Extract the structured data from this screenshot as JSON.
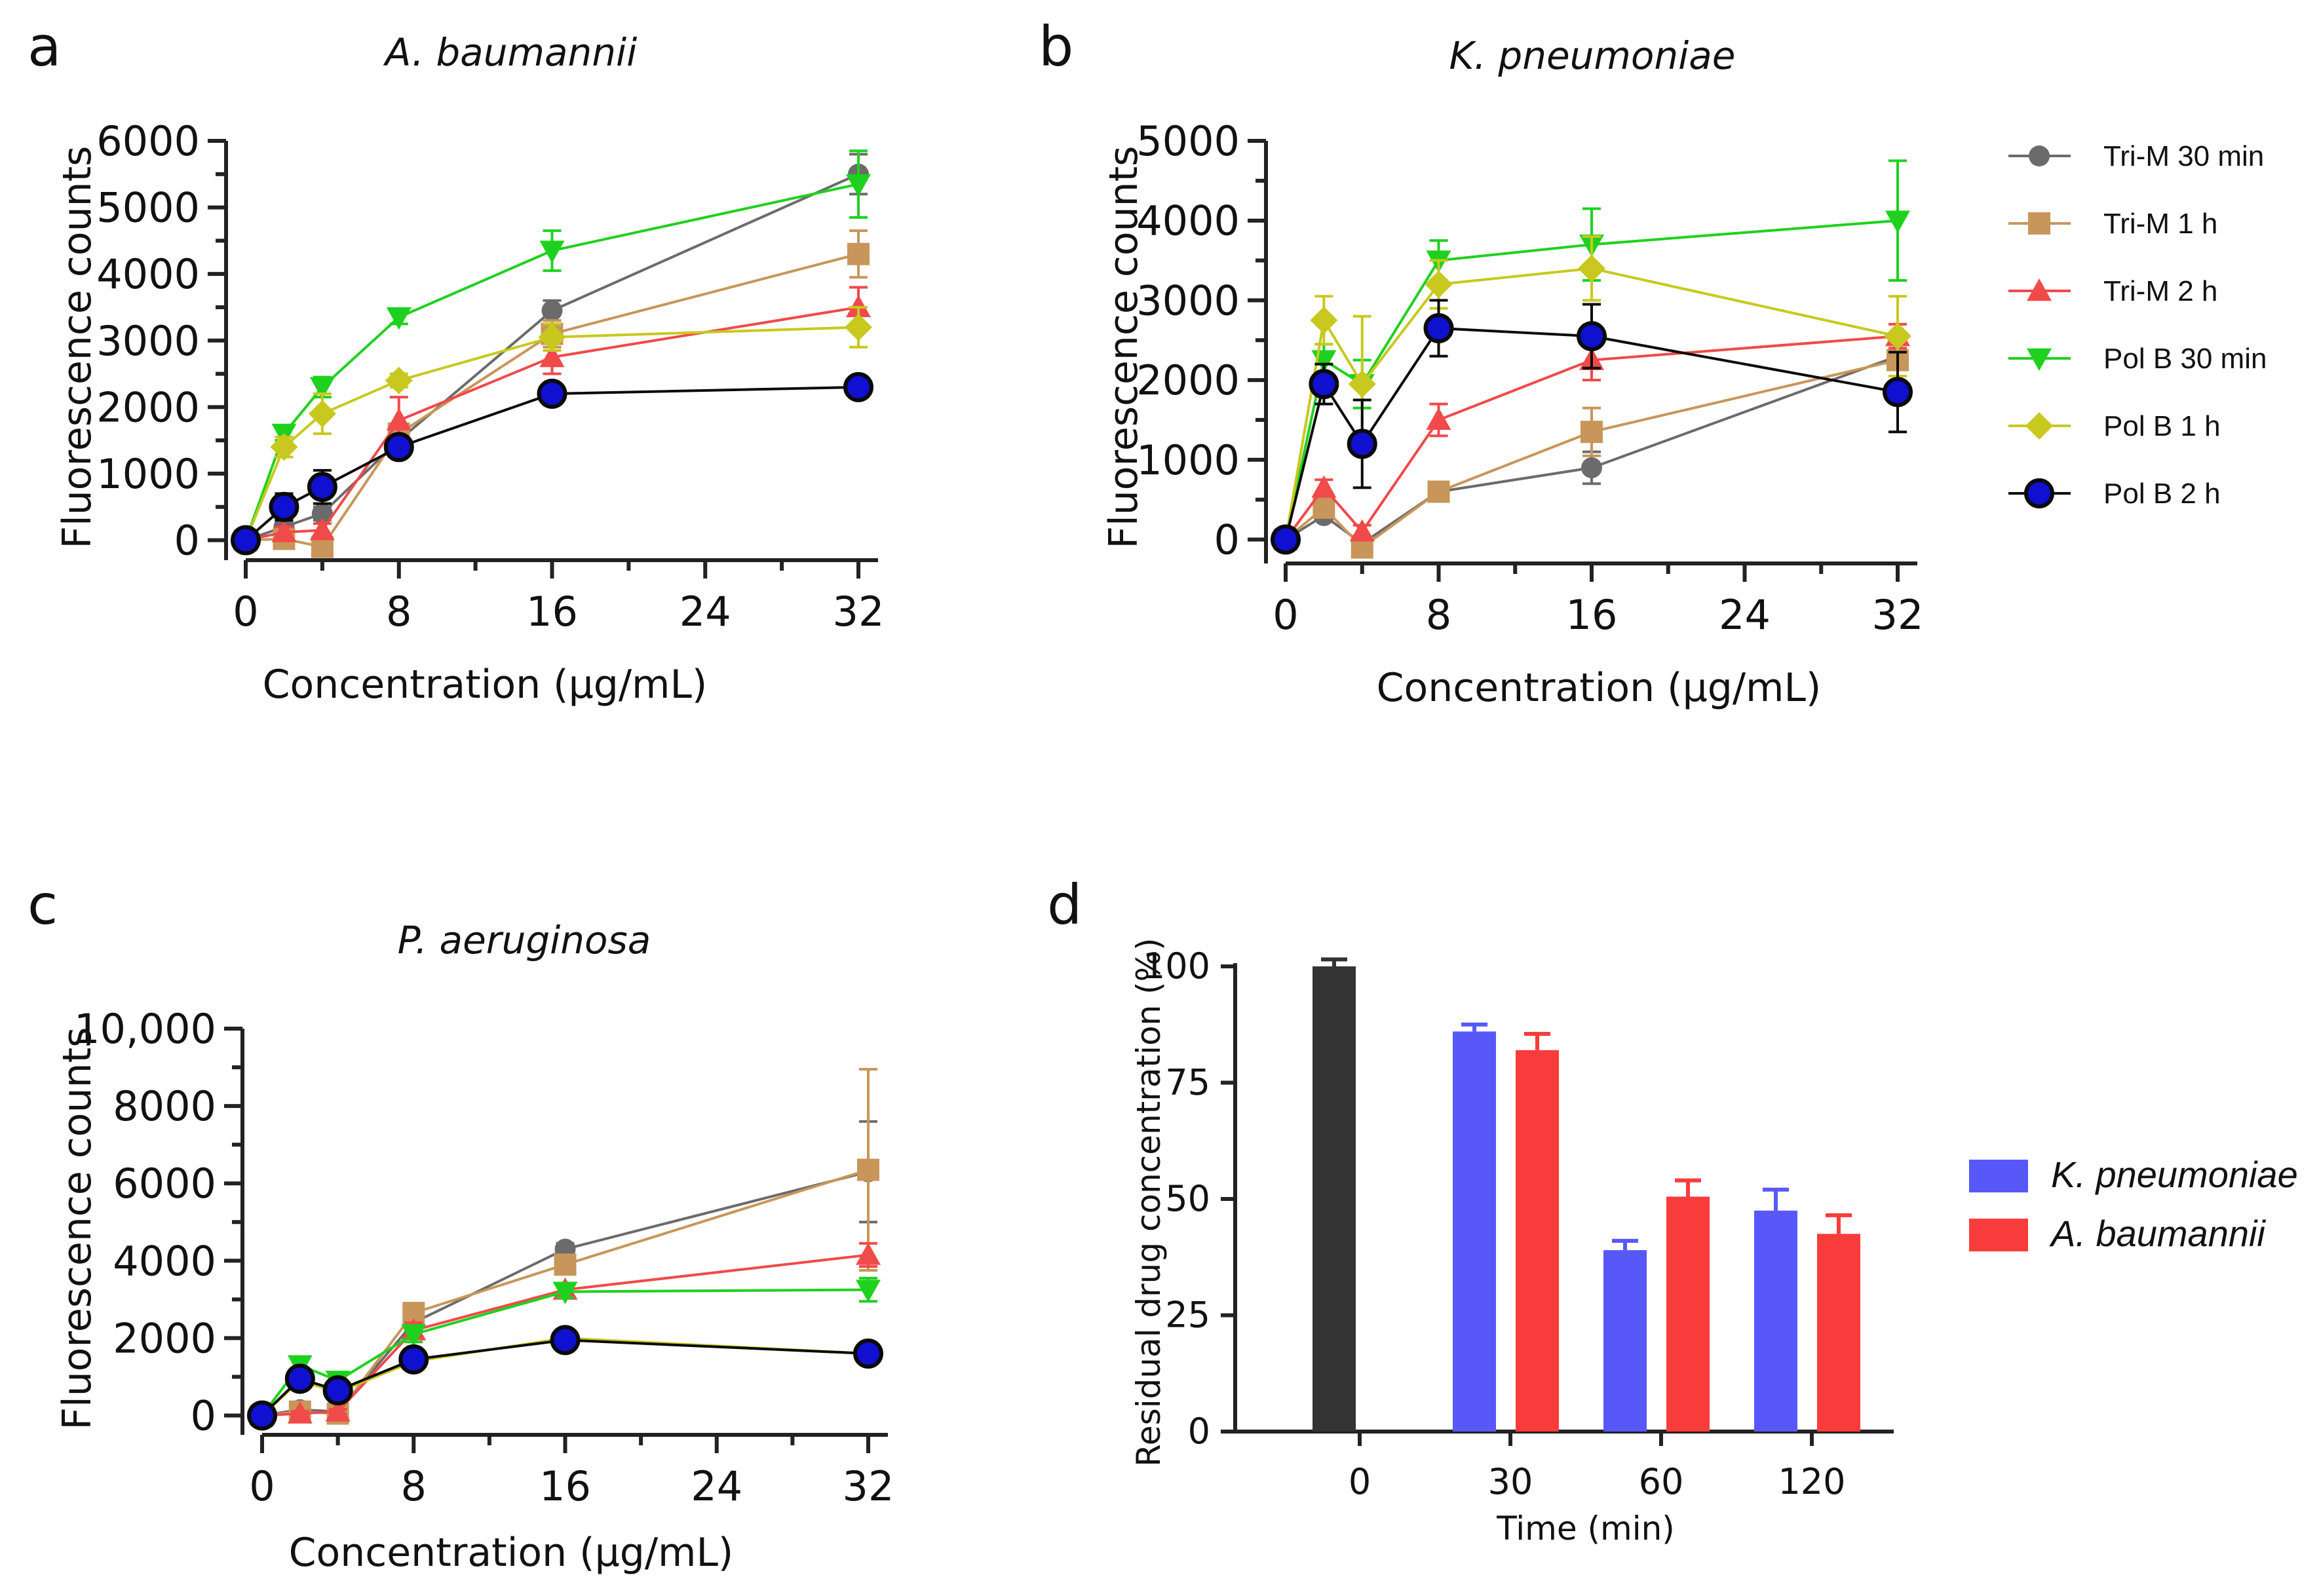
{
  "colors": {
    "trim30": "#6b6b6b",
    "trim1h": "#c8965a",
    "trim2h": "#f04a4a",
    "polb30": "#1fd11f",
    "polb1h": "#c8c81e",
    "polb2h": "#0a0a0a",
    "polb2h_fill": "#1010d0",
    "kpn": "#5858f8",
    "aba": "#f83c3c",
    "zero_bar": "#333333"
  },
  "legend": [
    {
      "label": "Tri-M 30 min",
      "color": "trim30",
      "marker": "circle"
    },
    {
      "label": "Tri-M 1 h",
      "color": "trim1h",
      "marker": "square"
    },
    {
      "label": "Tri-M 2 h",
      "color": "trim2h",
      "marker": "triangle-up"
    },
    {
      "label": "Pol B 30 min",
      "color": "polb30",
      "marker": "triangle-down"
    },
    {
      "label": "Pol B 1 h",
      "color": "polb1h",
      "marker": "diamond"
    },
    {
      "label": "Pol B 2 h",
      "color": "polb2h",
      "marker": "big-circle"
    }
  ],
  "chart_data": [
    {
      "panel": "a",
      "type": "line",
      "title": "A. baumannii",
      "xlabel": "Concentration (μg/mL)",
      "ylabel": "Fluorescence counts",
      "x": [
        0,
        2,
        4,
        8,
        16,
        32
      ],
      "xticks": [
        0,
        8,
        16,
        24,
        32
      ],
      "xtick_labels": [
        "0",
        "8",
        "16",
        "24",
        "32"
      ],
      "yticks": [
        0,
        1000,
        2000,
        3000,
        4000,
        5000,
        6000
      ],
      "ytick_labels": [
        "0",
        "1000",
        "2000",
        "3000",
        "4000",
        "5000",
        "6000"
      ],
      "xlim": [
        0,
        32
      ],
      "ylim": [
        -300,
        6000
      ],
      "series": [
        {
          "name": "Tri-M 30 min",
          "values": [
            0,
            200,
            400,
            1500,
            3450,
            5500
          ],
          "err": [
            0,
            80,
            100,
            150,
            150,
            300
          ]
        },
        {
          "name": "Tri-M 1 h",
          "values": [
            0,
            20,
            -100,
            1600,
            3100,
            4300
          ],
          "err": [
            0,
            60,
            80,
            150,
            200,
            350
          ]
        },
        {
          "name": "Tri-M 2 h",
          "values": [
            0,
            120,
            150,
            1800,
            2750,
            3500
          ],
          "err": [
            0,
            80,
            100,
            350,
            250,
            300
          ]
        },
        {
          "name": "Pol B 30 min",
          "values": [
            0,
            1600,
            2300,
            3350,
            4350,
            5350
          ],
          "err": [
            0,
            100,
            150,
            100,
            300,
            500
          ]
        },
        {
          "name": "Pol B 1 h",
          "values": [
            0,
            1400,
            1900,
            2400,
            3050,
            3200
          ],
          "err": [
            0,
            150,
            300,
            100,
            200,
            300
          ]
        },
        {
          "name": "Pol B 2 h",
          "values": [
            0,
            500,
            800,
            1400,
            2200,
            2300
          ],
          "err": [
            0,
            200,
            250,
            100,
            150,
            100
          ]
        }
      ]
    },
    {
      "panel": "b",
      "type": "line",
      "title": "K. pneumoniae",
      "xlabel": "Concentration (μg/mL)",
      "ylabel": "Fluorescence counts",
      "x": [
        0,
        2,
        4,
        8,
        16,
        32
      ],
      "xticks": [
        0,
        8,
        16,
        24,
        32
      ],
      "xtick_labels": [
        "0",
        "8",
        "16",
        "24",
        "32"
      ],
      "yticks": [
        0,
        1000,
        2000,
        3000,
        4000,
        5000
      ],
      "ytick_labels": [
        "0",
        "1000",
        "2000",
        "3000",
        "4000",
        "5000"
      ],
      "xlim": [
        0,
        32
      ],
      "ylim": [
        -300,
        5000
      ],
      "series": [
        {
          "name": "Tri-M 30 min",
          "values": [
            0,
            300,
            -50,
            600,
            900,
            2300
          ],
          "err": [
            0,
            60,
            60,
            80,
            200,
            150
          ]
        },
        {
          "name": "Tri-M 1 h",
          "values": [
            0,
            400,
            -100,
            600,
            1350,
            2250
          ],
          "err": [
            0,
            80,
            60,
            100,
            300,
            200
          ]
        },
        {
          "name": "Tri-M 2 h",
          "values": [
            0,
            650,
            100,
            1500,
            2250,
            2550
          ],
          "err": [
            0,
            100,
            80,
            200,
            250,
            150
          ]
        },
        {
          "name": "Pol B 30 min",
          "values": [
            0,
            2250,
            1950,
            3500,
            3700,
            4000
          ],
          "err": [
            0,
            200,
            300,
            250,
            450,
            750
          ]
        },
        {
          "name": "Pol B 1 h",
          "values": [
            0,
            2750,
            1950,
            3200,
            3400,
            2550
          ],
          "err": [
            0,
            300,
            850,
            300,
            400,
            500
          ]
        },
        {
          "name": "Pol B 2 h",
          "values": [
            0,
            1950,
            1200,
            2650,
            2550,
            1850
          ],
          "err": [
            0,
            250,
            550,
            350,
            400,
            500
          ]
        }
      ]
    },
    {
      "panel": "c",
      "type": "line",
      "title": "P. aeruginosa",
      "xlabel": "Concentration (μg/mL)",
      "ylabel": "Fluorescence counts",
      "x": [
        0,
        2,
        4,
        8,
        16,
        32
      ],
      "xticks": [
        0,
        8,
        16,
        24,
        32
      ],
      "xtick_labels": [
        "0",
        "8",
        "16",
        "24",
        "32"
      ],
      "yticks": [
        0,
        2000,
        4000,
        6000,
        8000,
        10000
      ],
      "ytick_labels": [
        "0",
        "2000",
        "4000",
        "6000",
        "8000",
        "10,000"
      ],
      "xlim": [
        0,
        32
      ],
      "ylim": [
        -500,
        10000
      ],
      "series": [
        {
          "name": "Tri-M 30 min",
          "values": [
            0,
            150,
            100,
            2400,
            4300,
            6300
          ],
          "err": [
            0,
            100,
            80,
            200,
            150,
            1300
          ]
        },
        {
          "name": "Tri-M 1 h",
          "values": [
            0,
            100,
            50,
            2650,
            3900,
            6350
          ],
          "err": [
            0,
            80,
            80,
            200,
            150,
            2600
          ]
        },
        {
          "name": "Tri-M 2 h",
          "values": [
            0,
            50,
            100,
            2200,
            3250,
            4150
          ],
          "err": [
            0,
            60,
            60,
            200,
            150,
            300
          ]
        },
        {
          "name": "Pol B 30 min",
          "values": [
            0,
            1300,
            900,
            2100,
            3200,
            3250
          ],
          "err": [
            0,
            200,
            200,
            200,
            150,
            300
          ]
        },
        {
          "name": "Pol B 1 h",
          "values": [
            0,
            900,
            600,
            1400,
            2000,
            1600
          ],
          "err": [
            0,
            100,
            100,
            100,
            100,
            100
          ]
        },
        {
          "name": "Pol B 2 h",
          "values": [
            0,
            950,
            650,
            1450,
            1950,
            1600
          ],
          "err": [
            0,
            150,
            150,
            100,
            100,
            100
          ]
        }
      ]
    },
    {
      "panel": "d",
      "type": "bar",
      "xlabel": "Time (min)",
      "ylabel": "Residual drug concentration (%)",
      "categories": [
        "0",
        "30",
        "60",
        "120"
      ],
      "yticks": [
        0,
        25,
        50,
        75,
        100
      ],
      "ytick_labels": [
        "0",
        "25",
        "50",
        "75",
        "100"
      ],
      "ylim": [
        0,
        100
      ],
      "zero_bar": {
        "value": 100,
        "err": 1.5
      },
      "series": [
        {
          "name": "K. pneumoniae",
          "color": "kpn",
          "values": [
            null,
            86,
            39,
            47.5
          ],
          "err": [
            null,
            1.5,
            2,
            4.5
          ]
        },
        {
          "name": "A. baumannii",
          "color": "aba",
          "values": [
            null,
            82,
            50.5,
            42.5
          ],
          "err": [
            null,
            3.5,
            3.5,
            4
          ]
        }
      ]
    }
  ]
}
